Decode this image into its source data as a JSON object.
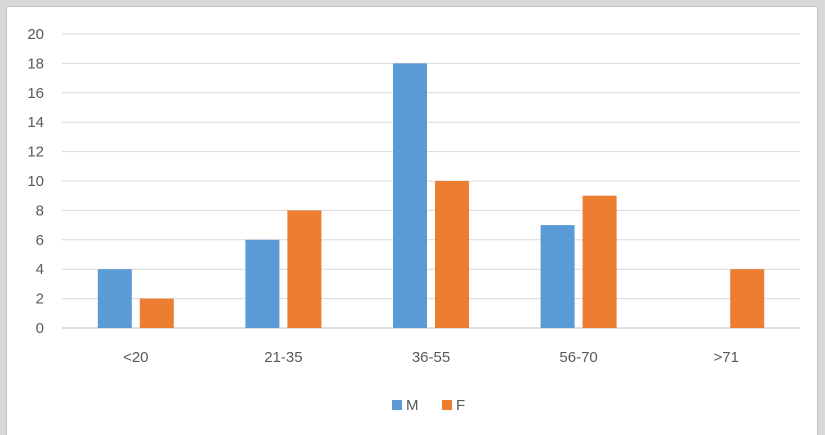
{
  "chart_data": {
    "type": "bar",
    "categories": [
      "<20",
      "21-35",
      "36-55",
      "56-70",
      ">71"
    ],
    "series": [
      {
        "name": "M",
        "values": [
          4,
          6,
          18,
          7,
          0
        ],
        "color": "#5b9bd5"
      },
      {
        "name": "F",
        "values": [
          2,
          8,
          10,
          9,
          4
        ],
        "color": "#ed7d31"
      }
    ],
    "ylim": [
      0,
      20
    ],
    "yticks": [
      "0",
      "2",
      "4",
      "6",
      "8",
      "10",
      "12",
      "14",
      "16",
      "18",
      "20"
    ],
    "grid": true,
    "legend_position": "bottom",
    "title": "",
    "xlabel": "",
    "ylabel": ""
  }
}
